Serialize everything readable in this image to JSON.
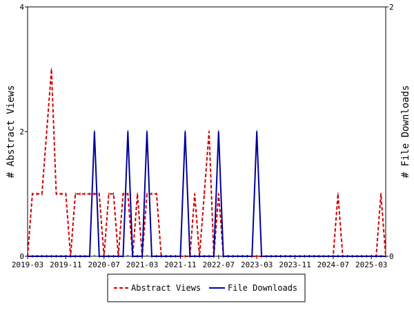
{
  "chart_data": {
    "type": "line",
    "x_axis": {
      "ticks": [
        "2019-03",
        "2019-11",
        "2020-07",
        "2021-03",
        "2021-11",
        "2022-07",
        "2023-03",
        "2023-11",
        "2024-07",
        "2025-03"
      ]
    },
    "left_axis": {
      "label": "# Abstract Views",
      "ylim": [
        0,
        4
      ],
      "ticks": [
        "0",
        "2",
        "4"
      ]
    },
    "right_axis": {
      "label": "# File Downloads",
      "ylim": [
        0,
        2
      ],
      "ticks": [
        "0",
        "2"
      ]
    },
    "legend_position": "bottom",
    "series": [
      {
        "name": "Abstract Views",
        "axis": "left",
        "color": "#cc0000",
        "style": "dashed",
        "points": [
          [
            "2019-03",
            0
          ],
          [
            "2019-04",
            1
          ],
          [
            "2019-05",
            1
          ],
          [
            "2019-06",
            1
          ],
          [
            "2019-07",
            2
          ],
          [
            "2019-08",
            3
          ],
          [
            "2019-09",
            1
          ],
          [
            "2019-10",
            1
          ],
          [
            "2019-11",
            1
          ],
          [
            "2019-12",
            0
          ],
          [
            "2020-01",
            1
          ],
          [
            "2020-02",
            1
          ],
          [
            "2020-03",
            1
          ],
          [
            "2020-04",
            1
          ],
          [
            "2020-05",
            1
          ],
          [
            "2020-06",
            1
          ],
          [
            "2020-07",
            0
          ],
          [
            "2020-08",
            1
          ],
          [
            "2020-09",
            1
          ],
          [
            "2020-10",
            0
          ],
          [
            "2020-11",
            1
          ],
          [
            "2020-12",
            1
          ],
          [
            "2021-01",
            0
          ],
          [
            "2021-02",
            1
          ],
          [
            "2021-03",
            0
          ],
          [
            "2021-04",
            1
          ],
          [
            "2021-05",
            1
          ],
          [
            "2021-06",
            1
          ],
          [
            "2021-07",
            0
          ],
          [
            "2021-08",
            0
          ],
          [
            "2021-09",
            0
          ],
          [
            "2021-10",
            0
          ],
          [
            "2021-11",
            0
          ],
          [
            "2021-12",
            0
          ],
          [
            "2022-01",
            0
          ],
          [
            "2022-02",
            1
          ],
          [
            "2022-03",
            0
          ],
          [
            "2022-04",
            1
          ],
          [
            "2022-05",
            2
          ],
          [
            "2022-06",
            0
          ],
          [
            "2022-07",
            1
          ],
          [
            "2022-08",
            0
          ],
          [
            "2022-09",
            0
          ],
          [
            "2022-10",
            0
          ],
          [
            "2022-11",
            0
          ],
          [
            "2022-12",
            0
          ],
          [
            "2023-01",
            0
          ],
          [
            "2023-02",
            0
          ],
          [
            "2023-03",
            0
          ],
          [
            "2023-04",
            0
          ],
          [
            "2023-05",
            0
          ],
          [
            "2023-06",
            0
          ],
          [
            "2023-07",
            0
          ],
          [
            "2023-08",
            0
          ],
          [
            "2023-09",
            0
          ],
          [
            "2023-10",
            0
          ],
          [
            "2023-11",
            0
          ],
          [
            "2023-12",
            0
          ],
          [
            "2024-01",
            0
          ],
          [
            "2024-02",
            0
          ],
          [
            "2024-03",
            0
          ],
          [
            "2024-04",
            0
          ],
          [
            "2024-05",
            0
          ],
          [
            "2024-06",
            0
          ],
          [
            "2024-07",
            0
          ],
          [
            "2024-08",
            1
          ],
          [
            "2024-09",
            0
          ],
          [
            "2024-10",
            0
          ],
          [
            "2024-11",
            0
          ],
          [
            "2024-12",
            0
          ],
          [
            "2025-01",
            0
          ],
          [
            "2025-02",
            0
          ],
          [
            "2025-03",
            0
          ],
          [
            "2025-04",
            0
          ],
          [
            "2025-05",
            1
          ],
          [
            "2025-06",
            0
          ]
        ]
      },
      {
        "name": "File Downloads",
        "axis": "right",
        "color": "#000099",
        "style": "solid",
        "points": [
          [
            "2019-03",
            0
          ],
          [
            "2019-04",
            0
          ],
          [
            "2019-05",
            0
          ],
          [
            "2019-06",
            0
          ],
          [
            "2019-07",
            0
          ],
          [
            "2019-08",
            0
          ],
          [
            "2019-09",
            0
          ],
          [
            "2019-10",
            0
          ],
          [
            "2019-11",
            0
          ],
          [
            "2019-12",
            0
          ],
          [
            "2020-01",
            0
          ],
          [
            "2020-02",
            0
          ],
          [
            "2020-03",
            0
          ],
          [
            "2020-04",
            0
          ],
          [
            "2020-05",
            1
          ],
          [
            "2020-06",
            0
          ],
          [
            "2020-07",
            0
          ],
          [
            "2020-08",
            0
          ],
          [
            "2020-09",
            0
          ],
          [
            "2020-10",
            0
          ],
          [
            "2020-11",
            0
          ],
          [
            "2020-12",
            1
          ],
          [
            "2021-01",
            0
          ],
          [
            "2021-02",
            0
          ],
          [
            "2021-03",
            0
          ],
          [
            "2021-04",
            1
          ],
          [
            "2021-05",
            0
          ],
          [
            "2021-06",
            0
          ],
          [
            "2021-07",
            0
          ],
          [
            "2021-08",
            0
          ],
          [
            "2021-09",
            0
          ],
          [
            "2021-10",
            0
          ],
          [
            "2021-11",
            0
          ],
          [
            "2021-12",
            1
          ],
          [
            "2022-01",
            0
          ],
          [
            "2022-02",
            0
          ],
          [
            "2022-03",
            0
          ],
          [
            "2022-04",
            0
          ],
          [
            "2022-05",
            0
          ],
          [
            "2022-06",
            0
          ],
          [
            "2022-07",
            1
          ],
          [
            "2022-08",
            0
          ],
          [
            "2022-09",
            0
          ],
          [
            "2022-10",
            0
          ],
          [
            "2022-11",
            0
          ],
          [
            "2022-12",
            0
          ],
          [
            "2023-01",
            0
          ],
          [
            "2023-02",
            0
          ],
          [
            "2023-03",
            1
          ],
          [
            "2023-04",
            0
          ],
          [
            "2023-05",
            0
          ],
          [
            "2023-06",
            0
          ],
          [
            "2023-07",
            0
          ],
          [
            "2023-08",
            0
          ],
          [
            "2023-09",
            0
          ],
          [
            "2023-10",
            0
          ],
          [
            "2023-11",
            0
          ],
          [
            "2023-12",
            0
          ],
          [
            "2024-01",
            0
          ],
          [
            "2024-02",
            0
          ],
          [
            "2024-03",
            0
          ],
          [
            "2024-04",
            0
          ],
          [
            "2024-05",
            0
          ],
          [
            "2024-06",
            0
          ],
          [
            "2024-07",
            0
          ],
          [
            "2024-08",
            0
          ],
          [
            "2024-09",
            0
          ],
          [
            "2024-10",
            0
          ],
          [
            "2024-11",
            0
          ],
          [
            "2024-12",
            0
          ],
          [
            "2025-01",
            0
          ],
          [
            "2025-02",
            0
          ],
          [
            "2025-03",
            0
          ],
          [
            "2025-04",
            0
          ],
          [
            "2025-05",
            0
          ],
          [
            "2025-06",
            0
          ]
        ]
      }
    ],
    "legend": [
      "Abstract Views",
      "File Downloads"
    ]
  }
}
